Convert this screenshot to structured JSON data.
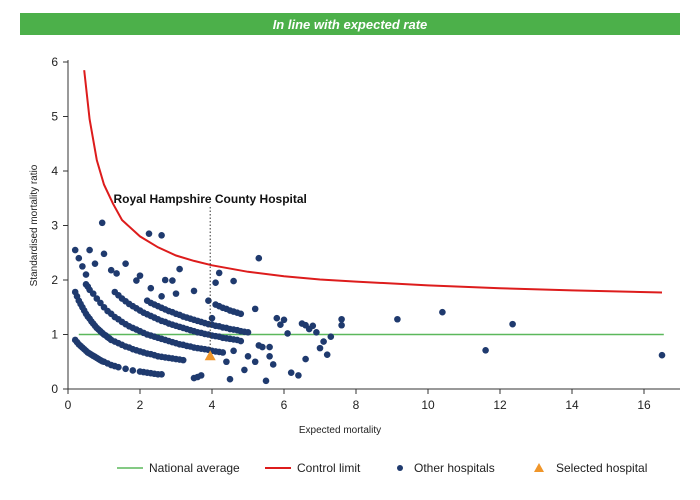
{
  "banner": {
    "text": "In line with expected rate",
    "color": "#4cb04a"
  },
  "chart_data": {
    "type": "scatter",
    "xlabel": "Expected mortality",
    "ylabel": "Standardised mortality ratio",
    "xlim": [
      0,
      17
    ],
    "ylim": [
      0,
      6
    ],
    "x_ticks": [
      "0",
      "2",
      "4",
      "6",
      "8",
      "10",
      "12",
      "14",
      "16"
    ],
    "y_ticks": [
      "0",
      "1",
      "2",
      "3",
      "4",
      "5",
      "6"
    ],
    "grid": false,
    "legend_position": "bottom",
    "colors": {
      "national": "#5cb85c",
      "control": "#dd1c1c",
      "others": "#1f3a6e",
      "selected": "#f0962a"
    },
    "national_average": {
      "name": "National average",
      "value": 1
    },
    "control_limit": {
      "name": "Control limit",
      "x": [
        0.45,
        0.6,
        0.8,
        1.0,
        1.25,
        1.5,
        2,
        2.5,
        3,
        3.5,
        4,
        5,
        6,
        7,
        8,
        10,
        12,
        14,
        16.5
      ],
      "y": [
        5.85,
        4.95,
        4.2,
        3.75,
        3.4,
        3.1,
        2.8,
        2.6,
        2.45,
        2.35,
        2.27,
        2.15,
        2.07,
        2.01,
        1.97,
        1.9,
        1.85,
        1.81,
        1.77
      ]
    },
    "series": [
      {
        "name": "Other hospitals",
        "type": "scatter",
        "points": [
          [
            0.2,
            1.78
          ],
          [
            0.25,
            1.7
          ],
          [
            0.3,
            1.62
          ],
          [
            0.35,
            1.56
          ],
          [
            0.4,
            1.5
          ],
          [
            0.45,
            1.44
          ],
          [
            0.5,
            1.38
          ],
          [
            0.55,
            1.33
          ],
          [
            0.6,
            1.29
          ],
          [
            0.65,
            1.24
          ],
          [
            0.7,
            1.2
          ],
          [
            0.75,
            1.16
          ],
          [
            0.8,
            1.12
          ],
          [
            0.85,
            1.09
          ],
          [
            0.9,
            1.06
          ],
          [
            0.95,
            1.03
          ],
          [
            1.0,
            1.0
          ],
          [
            1.05,
            0.98
          ],
          [
            1.1,
            0.95
          ],
          [
            1.15,
            0.93
          ],
          [
            1.2,
            0.9
          ],
          [
            1.3,
            0.87
          ],
          [
            1.4,
            0.84
          ],
          [
            1.5,
            0.81
          ],
          [
            1.6,
            0.78
          ],
          [
            1.7,
            0.76
          ],
          [
            1.8,
            0.73
          ],
          [
            1.9,
            0.71
          ],
          [
            2.0,
            0.69
          ],
          [
            2.1,
            0.67
          ],
          [
            2.2,
            0.65
          ],
          [
            2.3,
            0.64
          ],
          [
            2.4,
            0.62
          ],
          [
            2.5,
            0.6
          ],
          [
            2.6,
            0.59
          ],
          [
            2.7,
            0.58
          ],
          [
            2.8,
            0.57
          ],
          [
            2.9,
            0.56
          ],
          [
            3.0,
            0.55
          ],
          [
            3.1,
            0.54
          ],
          [
            3.2,
            0.53
          ],
          [
            0.2,
            0.9
          ],
          [
            0.25,
            0.86
          ],
          [
            0.3,
            0.82
          ],
          [
            0.35,
            0.79
          ],
          [
            0.4,
            0.76
          ],
          [
            0.45,
            0.73
          ],
          [
            0.5,
            0.7
          ],
          [
            0.55,
            0.67
          ],
          [
            0.6,
            0.65
          ],
          [
            0.65,
            0.63
          ],
          [
            0.7,
            0.61
          ],
          [
            0.75,
            0.59
          ],
          [
            0.8,
            0.57
          ],
          [
            0.85,
            0.55
          ],
          [
            0.9,
            0.53
          ],
          [
            0.95,
            0.51
          ],
          [
            1.0,
            0.5
          ],
          [
            1.1,
            0.47
          ],
          [
            1.2,
            0.44
          ],
          [
            1.3,
            0.42
          ],
          [
            1.4,
            0.4
          ],
          [
            1.6,
            0.37
          ],
          [
            1.8,
            0.34
          ],
          [
            2.0,
            0.32
          ],
          [
            2.1,
            0.31
          ],
          [
            2.2,
            0.3
          ],
          [
            2.3,
            0.29
          ],
          [
            2.4,
            0.28
          ],
          [
            2.5,
            0.27
          ],
          [
            2.6,
            0.27
          ],
          [
            0.5,
            1.92
          ],
          [
            0.55,
            1.88
          ],
          [
            0.6,
            1.82
          ],
          [
            0.7,
            1.75
          ],
          [
            0.8,
            1.66
          ],
          [
            0.9,
            1.58
          ],
          [
            1.0,
            1.5
          ],
          [
            1.1,
            1.43
          ],
          [
            1.2,
            1.38
          ],
          [
            1.3,
            1.32
          ],
          [
            1.4,
            1.28
          ],
          [
            1.5,
            1.23
          ],
          [
            1.6,
            1.19
          ],
          [
            1.7,
            1.15
          ],
          [
            1.8,
            1.12
          ],
          [
            1.9,
            1.09
          ],
          [
            2.0,
            1.06
          ],
          [
            2.1,
            1.03
          ],
          [
            2.2,
            1.0
          ],
          [
            2.3,
            0.98
          ],
          [
            2.4,
            0.96
          ],
          [
            2.5,
            0.94
          ],
          [
            2.6,
            0.92
          ],
          [
            2.7,
            0.9
          ],
          [
            2.8,
            0.88
          ],
          [
            2.9,
            0.86
          ],
          [
            3.0,
            0.84
          ],
          [
            3.1,
            0.82
          ],
          [
            3.2,
            0.81
          ],
          [
            3.3,
            0.79
          ],
          [
            3.4,
            0.78
          ],
          [
            3.5,
            0.76
          ],
          [
            3.6,
            0.75
          ],
          [
            3.7,
            0.74
          ],
          [
            3.8,
            0.73
          ],
          [
            3.9,
            0.72
          ],
          [
            4.0,
            0.7
          ],
          [
            4.1,
            0.69
          ],
          [
            4.2,
            0.68
          ],
          [
            4.3,
            0.67
          ],
          [
            1.3,
            1.78
          ],
          [
            1.4,
            1.72
          ],
          [
            1.5,
            1.66
          ],
          [
            1.6,
            1.61
          ],
          [
            1.7,
            1.56
          ],
          [
            1.8,
            1.52
          ],
          [
            1.9,
            1.48
          ],
          [
            2.0,
            1.44
          ],
          [
            2.1,
            1.4
          ],
          [
            2.2,
            1.37
          ],
          [
            2.3,
            1.34
          ],
          [
            2.4,
            1.31
          ],
          [
            2.5,
            1.28
          ],
          [
            2.6,
            1.25
          ],
          [
            2.7,
            1.23
          ],
          [
            2.8,
            1.2
          ],
          [
            2.9,
            1.18
          ],
          [
            3.0,
            1.16
          ],
          [
            3.1,
            1.14
          ],
          [
            3.2,
            1.12
          ],
          [
            3.3,
            1.1
          ],
          [
            3.4,
            1.08
          ],
          [
            3.5,
            1.06
          ],
          [
            3.6,
            1.04
          ],
          [
            3.7,
            1.03
          ],
          [
            3.8,
            1.01
          ],
          [
            3.9,
            1.0
          ],
          [
            4.0,
            0.98
          ],
          [
            4.1,
            0.97
          ],
          [
            4.2,
            0.96
          ],
          [
            4.3,
            0.94
          ],
          [
            4.4,
            0.93
          ],
          [
            4.5,
            0.92
          ],
          [
            4.6,
            0.91
          ],
          [
            4.7,
            0.9
          ],
          [
            4.8,
            0.88
          ],
          [
            2.2,
            1.62
          ],
          [
            2.3,
            1.58
          ],
          [
            2.4,
            1.55
          ],
          [
            2.5,
            1.52
          ],
          [
            2.6,
            1.49
          ],
          [
            2.7,
            1.46
          ],
          [
            2.8,
            1.43
          ],
          [
            2.9,
            1.41
          ],
          [
            3.0,
            1.38
          ],
          [
            3.1,
            1.36
          ],
          [
            3.2,
            1.33
          ],
          [
            3.3,
            1.31
          ],
          [
            3.4,
            1.29
          ],
          [
            3.5,
            1.27
          ],
          [
            3.6,
            1.25
          ],
          [
            3.7,
            1.23
          ],
          [
            3.8,
            1.21
          ],
          [
            3.9,
            1.19
          ],
          [
            4.0,
            1.18
          ],
          [
            4.1,
            1.16
          ],
          [
            4.2,
            1.15
          ],
          [
            4.3,
            1.13
          ],
          [
            4.4,
            1.12
          ],
          [
            4.5,
            1.1
          ],
          [
            4.6,
            1.09
          ],
          [
            4.7,
            1.08
          ],
          [
            4.8,
            1.06
          ],
          [
            4.9,
            1.05
          ],
          [
            5.0,
            1.04
          ],
          [
            4.1,
            1.55
          ],
          [
            4.2,
            1.52
          ],
          [
            4.3,
            1.49
          ],
          [
            4.4,
            1.47
          ],
          [
            4.5,
            1.44
          ],
          [
            4.6,
            1.42
          ],
          [
            4.7,
            1.4
          ],
          [
            4.8,
            1.38
          ],
          [
            0.2,
            2.55
          ],
          [
            0.3,
            2.4
          ],
          [
            0.4,
            2.25
          ],
          [
            0.5,
            2.1
          ],
          [
            0.6,
            2.55
          ],
          [
            0.75,
            2.3
          ],
          [
            1.0,
            2.48
          ],
          [
            1.2,
            2.18
          ],
          [
            1.35,
            2.12
          ],
          [
            1.6,
            2.3
          ],
          [
            1.9,
            1.99
          ],
          [
            2.0,
            2.08
          ],
          [
            2.3,
            1.85
          ],
          [
            2.6,
            1.7
          ],
          [
            2.7,
            2.0
          ],
          [
            2.9,
            1.99
          ],
          [
            3.0,
            1.75
          ],
          [
            3.1,
            2.2
          ],
          [
            3.5,
            1.8
          ],
          [
            3.9,
            1.62
          ],
          [
            4.0,
            1.3
          ],
          [
            4.2,
            2.13
          ],
          [
            4.6,
            1.98
          ],
          [
            5.3,
            2.4
          ],
          [
            0.95,
            3.05
          ],
          [
            2.25,
            2.85
          ],
          [
            2.6,
            2.82
          ],
          [
            4.1,
            1.95
          ],
          [
            5.2,
            1.47
          ],
          [
            5.4,
            0.77
          ],
          [
            5.6,
            0.77
          ],
          [
            5.8,
            1.3
          ],
          [
            5.9,
            1.18
          ],
          [
            6.0,
            1.27
          ],
          [
            6.1,
            1.02
          ],
          [
            6.5,
            1.2
          ],
          [
            6.6,
            1.17
          ],
          [
            6.7,
            1.1
          ],
          [
            6.8,
            1.16
          ],
          [
            6.9,
            1.04
          ],
          [
            7.0,
            0.75
          ],
          [
            7.1,
            0.87
          ],
          [
            7.2,
            0.63
          ],
          [
            7.3,
            0.96
          ],
          [
            7.6,
            1.17
          ],
          [
            7.6,
            1.28
          ],
          [
            9.15,
            1.28
          ],
          [
            10.4,
            1.41
          ],
          [
            11.6,
            0.71
          ],
          [
            12.35,
            1.19
          ],
          [
            16.5,
            0.62
          ],
          [
            5.2,
            0.5
          ],
          [
            5.3,
            0.8
          ],
          [
            5.5,
            0.15
          ],
          [
            5.6,
            0.6
          ],
          [
            5.7,
            0.45
          ],
          [
            6.2,
            0.3
          ],
          [
            6.4,
            0.25
          ],
          [
            6.6,
            0.55
          ],
          [
            3.5,
            0.2
          ],
          [
            3.6,
            0.22
          ],
          [
            3.7,
            0.25
          ],
          [
            4.5,
            0.18
          ],
          [
            4.9,
            0.35
          ],
          [
            5.0,
            0.6
          ],
          [
            4.6,
            0.7
          ],
          [
            4.4,
            0.5
          ]
        ]
      },
      {
        "name": "Selected hospital",
        "type": "scatter",
        "points": [
          [
            3.95,
            0.6
          ]
        ]
      }
    ],
    "annotations": [
      {
        "text": "Royal Hampshire County Hospital",
        "x": 3.95,
        "y": 0.6
      }
    ]
  }
}
